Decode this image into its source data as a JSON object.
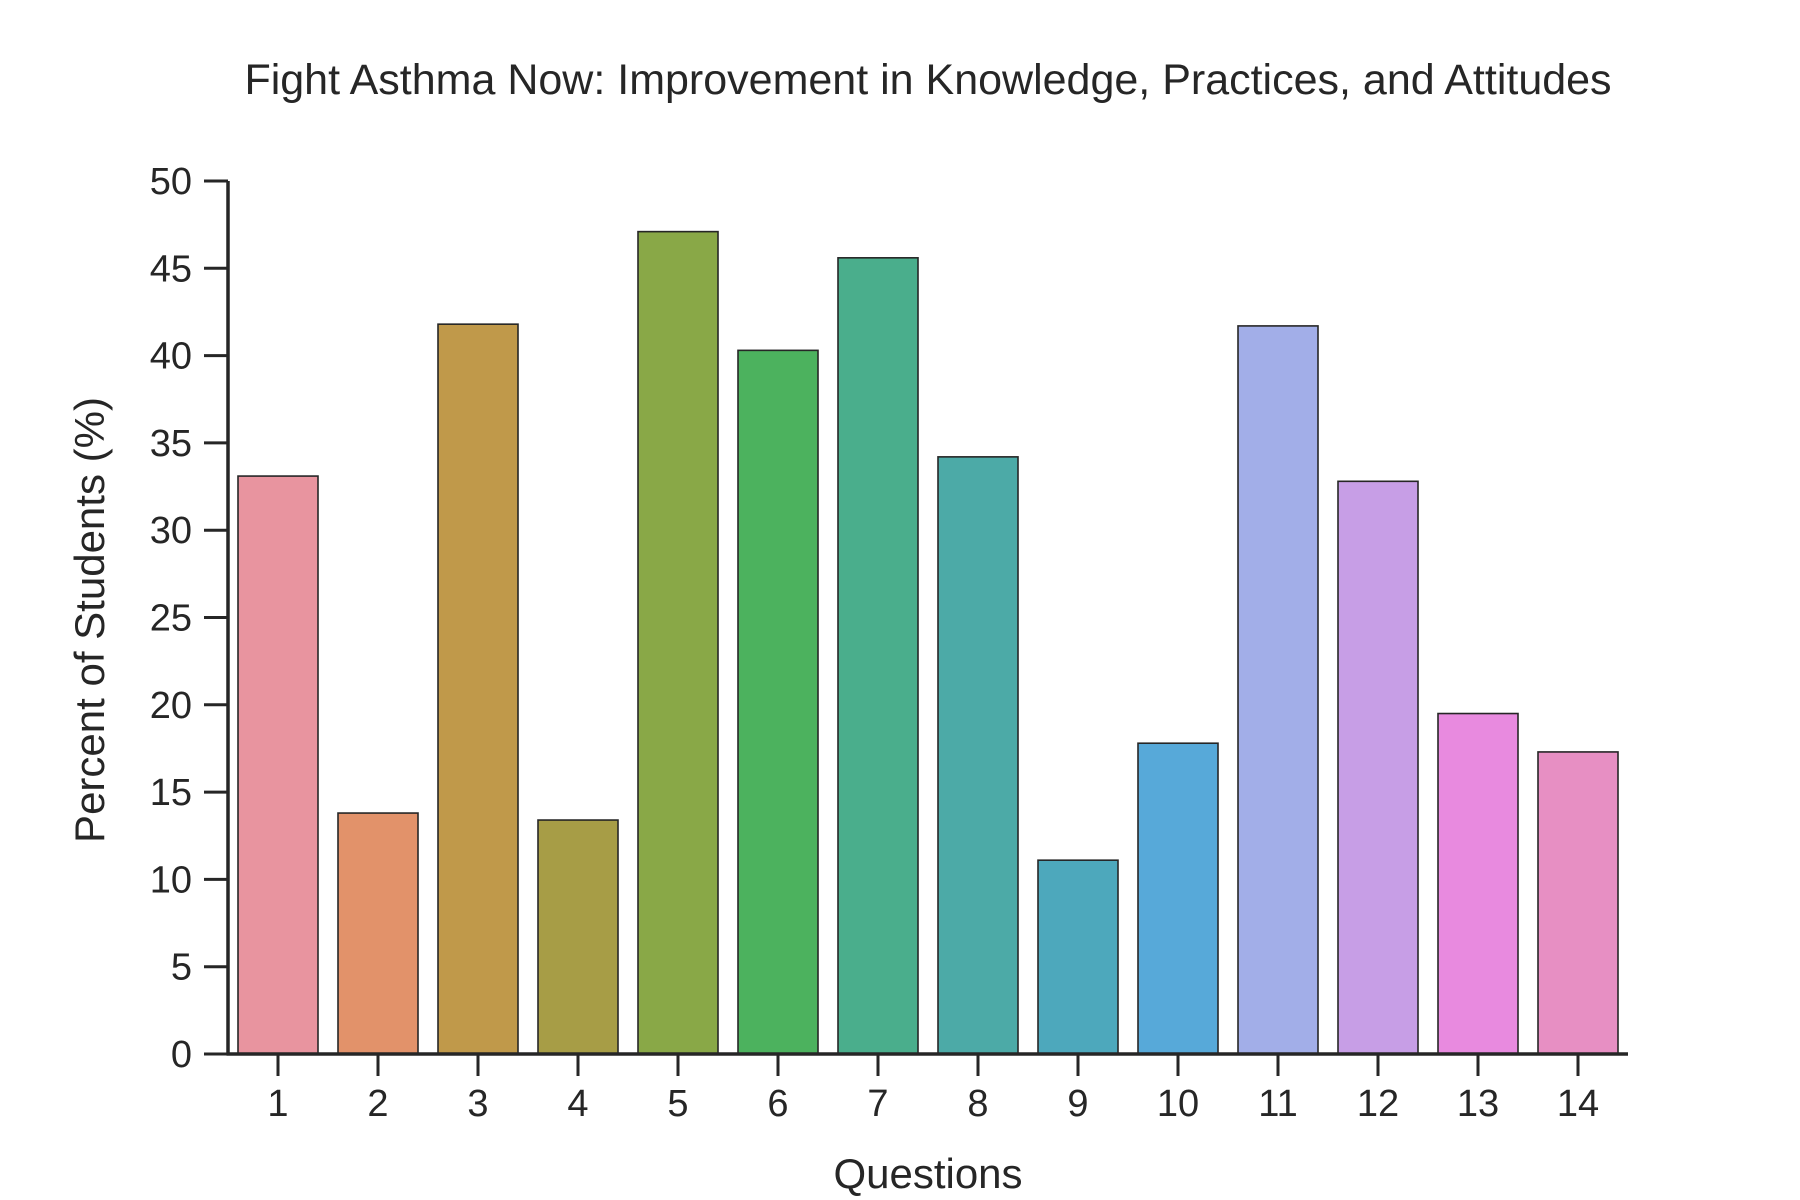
{
  "chart_data": {
    "type": "bar",
    "title": "Fight Asthma Now: Improvement in Knowledge, Practices, and Attitudes",
    "xlabel": "Questions",
    "ylabel": "Percent of Students (%)",
    "categories": [
      "1",
      "2",
      "3",
      "4",
      "5",
      "6",
      "7",
      "8",
      "9",
      "10",
      "11",
      "12",
      "13",
      "14"
    ],
    "values": [
      33.1,
      13.8,
      41.8,
      13.4,
      47.1,
      40.3,
      45.6,
      34.2,
      11.1,
      17.8,
      41.7,
      32.8,
      19.5,
      17.3
    ],
    "colors": [
      "#e8949f",
      "#e2926a",
      "#c0994a",
      "#a79d46",
      "#89a847",
      "#4cb25e",
      "#4aae8c",
      "#4caaa7",
      "#4da8bc",
      "#57a9d9",
      "#a2aee8",
      "#c79ee6",
      "#e88adf",
      "#e78fc3"
    ],
    "ylim": [
      0,
      50
    ],
    "yticks": [
      0,
      5,
      10,
      15,
      20,
      25,
      30,
      35,
      40,
      45,
      50
    ],
    "grid": false,
    "legend": "none"
  }
}
